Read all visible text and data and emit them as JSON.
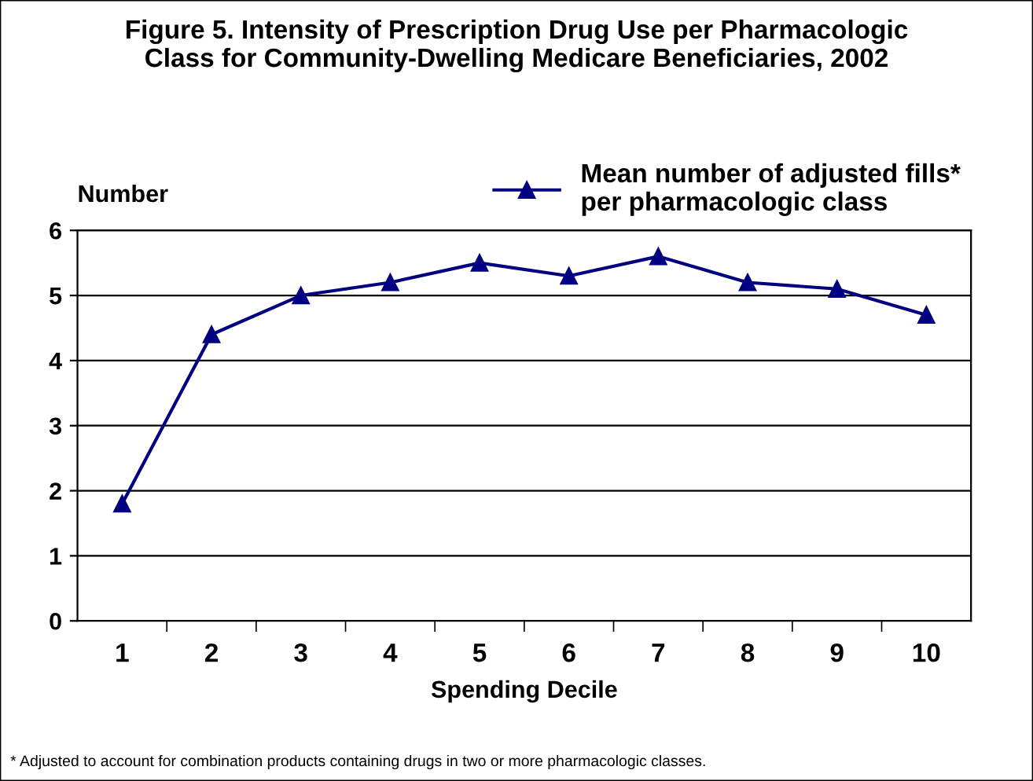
{
  "chart_data": {
    "type": "line",
    "title": "Figure 5. Intensity of Prescription Drug Use per Pharmacologic\nClass for Community-Dwelling Medicare Beneficiaries, 2002",
    "ylabel": "Number",
    "xlabel": "Spending Decile",
    "categories": [
      "1",
      "2",
      "3",
      "4",
      "5",
      "6",
      "7",
      "8",
      "9",
      "10"
    ],
    "series": [
      {
        "name": "Mean number of adjusted fills*\nper pharmacologic class",
        "color": "#000080",
        "values": [
          1.8,
          4.4,
          5.0,
          5.2,
          5.5,
          5.3,
          5.6,
          5.2,
          5.1,
          4.7
        ]
      }
    ],
    "ylim": [
      0,
      6
    ],
    "yticks": [
      0,
      1,
      2,
      3,
      4,
      5,
      6
    ],
    "grid": "y",
    "legend": "top right",
    "marker": "triangle",
    "line_style": "solid",
    "annotations": [
      "* Adjusted to account for combination products containing drugs in two or more pharmacologic classes."
    ]
  }
}
